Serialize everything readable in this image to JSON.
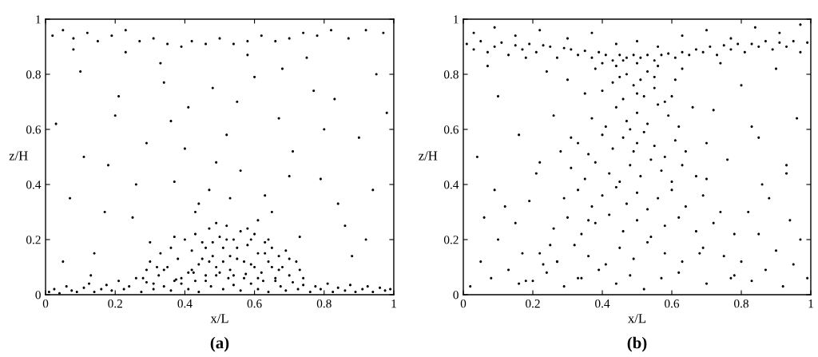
{
  "chart_data": [
    {
      "type": "scatter",
      "xlabel": "x/L",
      "ylabel": "z/H",
      "annotations": [
        "(a)"
      ],
      "marker": "circle",
      "xlim": [
        0,
        1
      ],
      "ylim": [
        0,
        1
      ],
      "xticks": [
        0,
        0.2,
        0.4,
        0.6,
        0.8,
        1
      ],
      "yticks": [
        0,
        0.2,
        0.4,
        0.6,
        0.8,
        1
      ],
      "series": [
        {
          "color": "#000000",
          "x": [
            0.01,
            0.025,
            0.04,
            0.06,
            0.075,
            0.09,
            0.11,
            0.125,
            0.14,
            0.16,
            0.175,
            0.19,
            0.21,
            0.225,
            0.24,
            0.26,
            0.275,
            0.29,
            0.31,
            0.325,
            0.34,
            0.36,
            0.375,
            0.39,
            0.41,
            0.425,
            0.44,
            0.46,
            0.475,
            0.49,
            0.51,
            0.525,
            0.54,
            0.56,
            0.575,
            0.59,
            0.61,
            0.625,
            0.64,
            0.66,
            0.675,
            0.69,
            0.71,
            0.725,
            0.74,
            0.76,
            0.775,
            0.79,
            0.81,
            0.825,
            0.84,
            0.86,
            0.875,
            0.89,
            0.91,
            0.925,
            0.94,
            0.96,
            0.975,
            0.99
          ],
          "values": [
            0.01,
            0.02,
            0.005,
            0.03,
            0.015,
            0.01,
            0.025,
            0.04,
            0.01,
            0.02,
            0.035,
            0.015,
            0.05,
            0.02,
            0.03,
            0.06,
            0.01,
            0.045,
            0.02,
            0.07,
            0.03,
            0.015,
            0.055,
            0.04,
            0.02,
            0.08,
            0.01,
            0.05,
            0.03,
            0.07,
            0.02,
            0.06,
            0.035,
            0.015,
            0.075,
            0.04,
            0.02,
            0.05,
            0.01,
            0.06,
            0.03,
            0.015,
            0.045,
            0.02,
            0.035,
            0.01,
            0.03,
            0.02,
            0.04,
            0.01,
            0.025,
            0.015,
            0.035,
            0.01,
            0.02,
            0.03,
            0.01,
            0.025,
            0.015,
            0.02
          ]
        },
        {
          "color": "#000000",
          "x": [
            0.28,
            0.3,
            0.31,
            0.33,
            0.34,
            0.36,
            0.37,
            0.38,
            0.4,
            0.41,
            0.42,
            0.43,
            0.44,
            0.45,
            0.46,
            0.47,
            0.48,
            0.49,
            0.5,
            0.51,
            0.52,
            0.53,
            0.54,
            0.55,
            0.56,
            0.57,
            0.58,
            0.59,
            0.6,
            0.61,
            0.62,
            0.63,
            0.64,
            0.65,
            0.66,
            0.67,
            0.68,
            0.69,
            0.7,
            0.72,
            0.74,
            0.35,
            0.39,
            0.43,
            0.47,
            0.5,
            0.53,
            0.57,
            0.61,
            0.65,
            0.32,
            0.37,
            0.42,
            0.46,
            0.49,
            0.52,
            0.55,
            0.59,
            0.63,
            0.67,
            0.29,
            0.45,
            0.48,
            0.51,
            0.54,
            0.58,
            0.6,
            0.64,
            0.7,
            0.73
          ],
          "values": [
            0.06,
            0.12,
            0.04,
            0.15,
            0.09,
            0.17,
            0.05,
            0.13,
            0.2,
            0.08,
            0.16,
            0.22,
            0.11,
            0.19,
            0.07,
            0.24,
            0.14,
            0.1,
            0.21,
            0.17,
            0.25,
            0.09,
            0.2,
            0.13,
            0.23,
            0.06,
            0.18,
            0.11,
            0.22,
            0.15,
            0.08,
            0.19,
            0.12,
            0.17,
            0.05,
            0.14,
            0.1,
            0.16,
            0.07,
            0.12,
            0.06,
            0.1,
            0.06,
            0.05,
            0.12,
            0.08,
            0.14,
            0.12,
            0.06,
            0.1,
            0.1,
            0.21,
            0.09,
            0.17,
            0.26,
            0.2,
            0.17,
            0.2,
            0.15,
            0.09,
            0.09,
            0.13,
            0.19,
            0.12,
            0.07,
            0.24,
            0.1,
            0.2,
            0.13,
            0.09
          ]
        },
        {
          "color": "#000000",
          "x": [
            0.02,
            0.05,
            0.08,
            0.12,
            0.15,
            0.19,
            0.23,
            0.27,
            0.31,
            0.35,
            0.39,
            0.42,
            0.46,
            0.5,
            0.54,
            0.58,
            0.62,
            0.66,
            0.7,
            0.74,
            0.78,
            0.82,
            0.87,
            0.92,
            0.97,
            0.03,
            0.07,
            0.1,
            0.14,
            0.18,
            0.21,
            0.25,
            0.29,
            0.33,
            0.37,
            0.41,
            0.44,
            0.48,
            0.52,
            0.56,
            0.6,
            0.63,
            0.67,
            0.71,
            0.75,
            0.79,
            0.83,
            0.86,
            0.9,
            0.94,
            0.98,
            0.05,
            0.11,
            0.17,
            0.23,
            0.3,
            0.36,
            0.43,
            0.49,
            0.55,
            0.61,
            0.68,
            0.73,
            0.8,
            0.88,
            0.95,
            0.08,
            0.2,
            0.34,
            0.47,
            0.58,
            0.7,
            0.84,
            0.92,
            0.26,
            0.4,
            0.53,
            0.65,
            0.77,
            0.13
          ],
          "values": [
            0.94,
            0.96,
            0.93,
            0.95,
            0.92,
            0.94,
            0.96,
            0.92,
            0.93,
            0.91,
            0.9,
            0.92,
            0.91,
            0.93,
            0.91,
            0.92,
            0.94,
            0.92,
            0.93,
            0.95,
            0.94,
            0.96,
            0.93,
            0.96,
            0.95,
            0.62,
            0.35,
            0.81,
            0.15,
            0.47,
            0.72,
            0.28,
            0.55,
            0.84,
            0.41,
            0.68,
            0.33,
            0.75,
            0.58,
            0.45,
            0.79,
            0.36,
            0.64,
            0.52,
            0.86,
            0.42,
            0.71,
            0.25,
            0.57,
            0.38,
            0.66,
            0.12,
            0.5,
            0.3,
            0.88,
            0.19,
            0.63,
            0.3,
            0.48,
            0.7,
            0.27,
            0.82,
            0.21,
            0.6,
            0.14,
            0.8,
            0.89,
            0.65,
            0.77,
            0.38,
            0.87,
            0.43,
            0.33,
            0.2,
            0.4,
            0.53,
            0.35,
            0.3,
            0.74,
            0.07
          ]
        }
      ]
    },
    {
      "type": "scatter",
      "xlabel": "x/L",
      "ylabel": "z/H",
      "annotations": [
        "(b)"
      ],
      "marker": "circle",
      "xlim": [
        0,
        1
      ],
      "ylim": [
        0,
        1
      ],
      "xticks": [
        0,
        0.2,
        0.4,
        0.6,
        0.8,
        1
      ],
      "yticks": [
        0,
        0.2,
        0.4,
        0.6,
        0.8,
        1
      ],
      "series": [
        {
          "color": "#000000",
          "x": [
            0.01,
            0.03,
            0.05,
            0.07,
            0.09,
            0.11,
            0.13,
            0.15,
            0.17,
            0.19,
            0.21,
            0.23,
            0.25,
            0.27,
            0.29,
            0.31,
            0.33,
            0.35,
            0.37,
            0.39,
            0.41,
            0.43,
            0.45,
            0.47,
            0.49,
            0.51,
            0.53,
            0.55,
            0.57,
            0.59,
            0.61,
            0.63,
            0.65,
            0.67,
            0.69,
            0.71,
            0.73,
            0.75,
            0.77,
            0.79,
            0.81,
            0.83,
            0.85,
            0.87,
            0.89,
            0.91,
            0.93,
            0.95,
            0.97,
            0.99
          ],
          "values": [
            0.91,
            0.89,
            0.92,
            0.88,
            0.9,
            0.915,
            0.87,
            0.905,
            0.89,
            0.91,
            0.88,
            0.905,
            0.9,
            0.86,
            0.895,
            0.89,
            0.87,
            0.885,
            0.86,
            0.88,
            0.87,
            0.85,
            0.87,
            0.86,
            0.87,
            0.86,
            0.87,
            0.85,
            0.87,
            0.875,
            0.86,
            0.88,
            0.87,
            0.89,
            0.88,
            0.9,
            0.87,
            0.905,
            0.89,
            0.91,
            0.88,
            0.91,
            0.9,
            0.92,
            0.89,
            0.915,
            0.9,
            0.92,
            0.88,
            0.915
          ]
        },
        {
          "color": "#000000",
          "x": [
            0.44,
            0.47,
            0.5,
            0.53,
            0.56,
            0.46,
            0.51,
            0.55,
            0.4,
            0.43,
            0.46,
            0.49,
            0.52,
            0.55,
            0.58,
            0.45,
            0.5,
            0.61,
            0.37,
            0.41,
            0.44,
            0.47,
            0.5,
            0.53,
            0.56,
            0.59,
            0.62,
            0.48,
            0.33,
            0.36,
            0.4,
            0.43,
            0.46,
            0.49,
            0.52,
            0.55,
            0.58,
            0.61,
            0.64,
            0.5,
            0.31,
            0.35,
            0.38,
            0.42,
            0.45,
            0.48,
            0.51,
            0.54,
            0.57,
            0.6,
            0.63,
            0.67,
            0.29,
            0.33,
            0.37,
            0.4,
            0.44,
            0.47,
            0.5,
            0.53,
            0.56,
            0.6,
            0.64,
            0.69,
            0.26,
            0.3,
            0.34,
            0.38,
            0.42,
            0.46,
            0.5,
            0.54,
            0.58,
            0.62,
            0.67,
            0.72,
            0.22,
            0.27,
            0.32,
            0.36,
            0.41,
            0.45,
            0.49,
            0.53,
            0.58,
            0.63,
            0.69,
            0.75,
            0.18,
            0.24,
            0.29,
            0.34,
            0.39,
            0.44,
            0.48,
            0.52,
            0.57,
            0.62,
            0.7,
            0.78
          ],
          "values": [
            0.83,
            0.8,
            0.84,
            0.81,
            0.83,
            0.85,
            0.78,
            0.79,
            0.74,
            0.77,
            0.71,
            0.76,
            0.72,
            0.75,
            0.7,
            0.79,
            0.73,
            0.78,
            0.64,
            0.61,
            0.68,
            0.63,
            0.66,
            0.62,
            0.69,
            0.65,
            0.61,
            0.6,
            0.55,
            0.51,
            0.58,
            0.53,
            0.57,
            0.52,
            0.59,
            0.54,
            0.5,
            0.56,
            0.52,
            0.55,
            0.46,
            0.42,
            0.48,
            0.44,
            0.41,
            0.47,
            0.43,
            0.49,
            0.45,
            0.41,
            0.47,
            0.43,
            0.35,
            0.38,
            0.32,
            0.36,
            0.39,
            0.33,
            0.37,
            0.31,
            0.35,
            0.38,
            0.32,
            0.36,
            0.24,
            0.28,
            0.22,
            0.26,
            0.29,
            0.23,
            0.27,
            0.21,
            0.25,
            0.28,
            0.23,
            0.26,
            0.15,
            0.12,
            0.18,
            0.14,
            0.11,
            0.17,
            0.13,
            0.19,
            0.15,
            0.12,
            0.17,
            0.14,
            0.05,
            0.08,
            0.03,
            0.06,
            0.09,
            0.04,
            0.07,
            0.02,
            0.06,
            0.08,
            0.04,
            0.07
          ]
        },
        {
          "color": "#000000",
          "x": [
            0.03,
            0.09,
            0.15,
            0.22,
            0.3,
            0.37,
            0.44,
            0.5,
            0.56,
            0.63,
            0.7,
            0.77,
            0.84,
            0.91,
            0.97,
            0.02,
            0.05,
            0.08,
            0.1,
            0.13,
            0.15,
            0.17,
            0.2,
            0.06,
            0.12,
            0.19,
            0.23,
            0.09,
            0.16,
            0.25,
            0.8,
            0.83,
            0.85,
            0.87,
            0.9,
            0.92,
            0.95,
            0.97,
            0.99,
            0.82,
            0.88,
            0.94,
            0.78,
            0.86,
            0.93,
            0.04,
            0.1,
            0.16,
            0.21,
            0.26,
            0.3,
            0.07,
            0.18,
            0.28,
            0.72,
            0.76,
            0.8,
            0.85,
            0.9,
            0.96,
            0.74,
            0.83,
            0.93,
            0.24,
            0.7,
            0.27,
            0.31,
            0.35,
            0.66,
            0.7,
            0.74,
            0.33,
            0.68,
            0.38,
            0.63,
            0.22,
            0.77,
            0.4,
            0.6,
            0.36
          ],
          "values": [
            0.95,
            0.97,
            0.94,
            0.96,
            0.93,
            0.95,
            0.91,
            0.92,
            0.9,
            0.94,
            0.96,
            0.93,
            0.97,
            0.95,
            0.98,
            0.03,
            0.12,
            0.06,
            0.2,
            0.09,
            0.26,
            0.15,
            0.05,
            0.28,
            0.32,
            0.34,
            0.11,
            0.38,
            0.04,
            0.18,
            0.12,
            0.05,
            0.22,
            0.09,
            0.16,
            0.03,
            0.11,
            0.2,
            0.06,
            0.3,
            0.35,
            0.27,
            0.22,
            0.4,
            0.44,
            0.5,
            0.72,
            0.58,
            0.44,
            0.65,
            0.78,
            0.83,
            0.86,
            0.52,
            0.67,
            0.49,
            0.76,
            0.57,
            0.82,
            0.64,
            0.84,
            0.61,
            0.47,
            0.81,
            0.55,
            0.12,
            0.57,
            0.73,
            0.68,
            0.42,
            0.3,
            0.06,
            0.15,
            0.82,
            0.82,
            0.48,
            0.06,
            0.84,
            0.72,
            0.27
          ]
        }
      ]
    }
  ]
}
